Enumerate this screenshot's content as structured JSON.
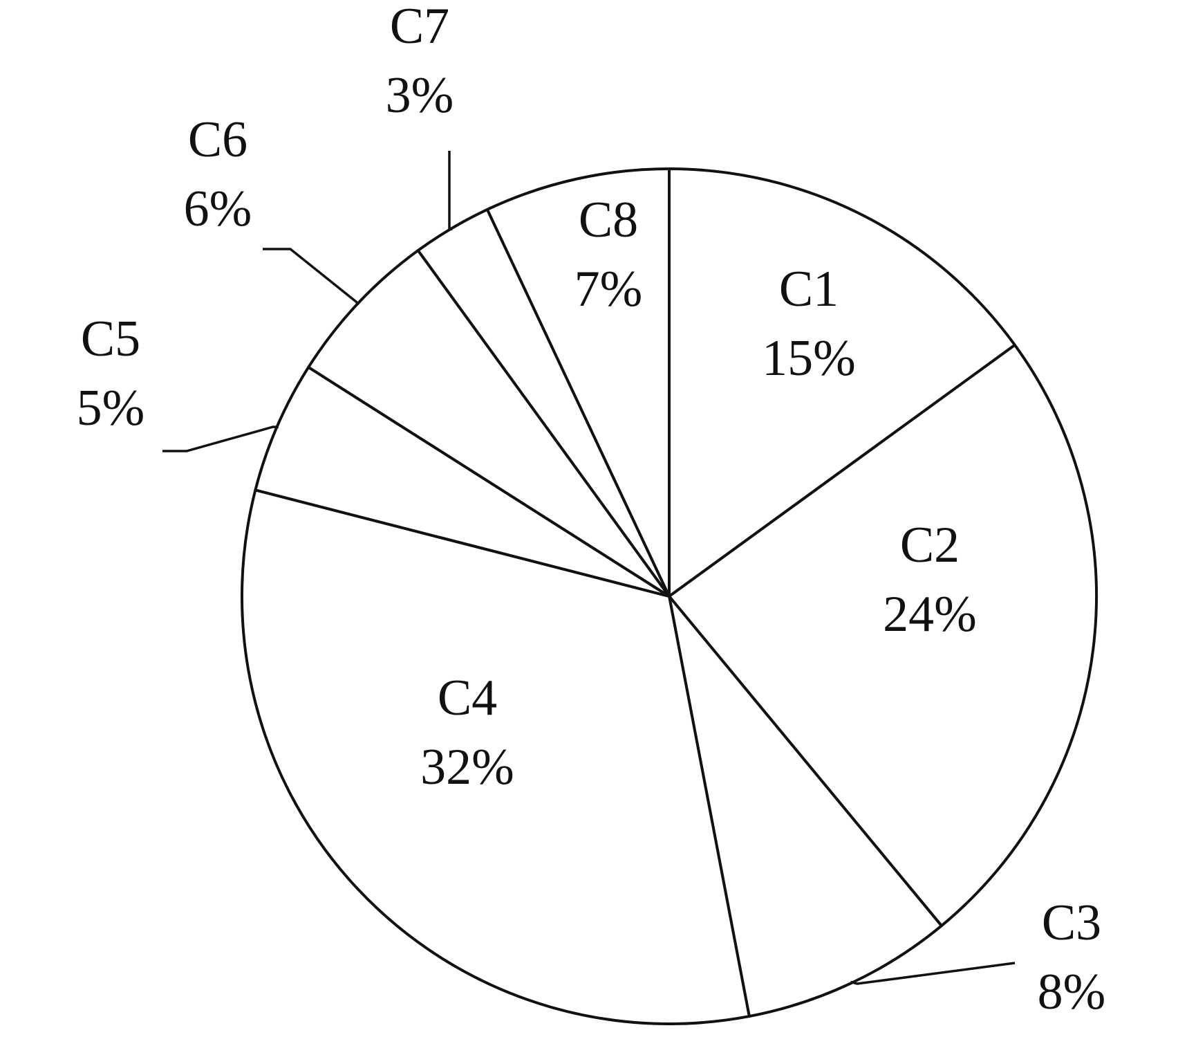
{
  "chart_data": {
    "type": "pie",
    "title": "",
    "start": "12 o'clock",
    "direction": "clockwise",
    "legend": "none",
    "colors": {
      "fill": "#ffffff",
      "stroke": "#111111",
      "text": "#111111"
    },
    "slices": [
      {
        "label": "C1",
        "value": 15,
        "value_label": "15%",
        "label_position": "inside"
      },
      {
        "label": "C2",
        "value": 24,
        "value_label": "24%",
        "label_position": "inside"
      },
      {
        "label": "C3",
        "value": 8,
        "value_label": "8%",
        "label_position": "outside"
      },
      {
        "label": "C4",
        "value": 32,
        "value_label": "32%",
        "label_position": "inside"
      },
      {
        "label": "C5",
        "value": 5,
        "value_label": "5%",
        "label_position": "outside"
      },
      {
        "label": "C6",
        "value": 6,
        "value_label": "6%",
        "label_position": "outside"
      },
      {
        "label": "C7",
        "value": 3,
        "value_label": "3%",
        "label_position": "outside"
      },
      {
        "label": "C8",
        "value": 7,
        "value_label": "7%",
        "label_position": "inside"
      }
    ]
  }
}
